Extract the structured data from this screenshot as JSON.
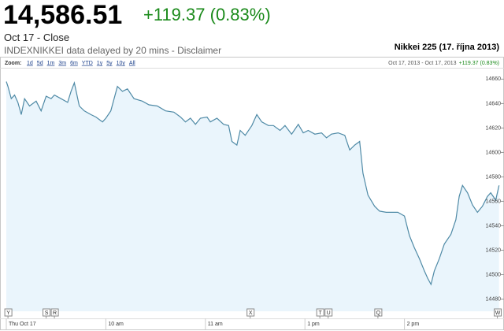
{
  "header": {
    "price": "14,586.51",
    "change": "+119.37 (0.83%)",
    "date": "Oct 17 - Close",
    "source": "INDEXNIKKEI data delayed by 20 mins - Disclaimer"
  },
  "chart_data": {
    "type": "line",
    "title": "Nikkei 225 (17. října 2013)",
    "zoom_label": "Zoom:",
    "zoom_options": [
      "1d",
      "5d",
      "1m",
      "3m",
      "6m",
      "YTD",
      "1y",
      "5y",
      "10y",
      "All"
    ],
    "range": "Oct 17, 2013 - Oct 17, 2013",
    "range_change": "+119.37 (0.83%)",
    "x": [
      0,
      1,
      3,
      5,
      7,
      9,
      11,
      14,
      18,
      21,
      24,
      27,
      29,
      33,
      37,
      39,
      41,
      44,
      47,
      51,
      54,
      58,
      60,
      63,
      65,
      67,
      70,
      73,
      77,
      82,
      86,
      91,
      96,
      101,
      105,
      108,
      111,
      114,
      117,
      121,
      123,
      127,
      131,
      134,
      136,
      139,
      141,
      144,
      148,
      151,
      154,
      158,
      161,
      165,
      168,
      172,
      176,
      179,
      182,
      186,
      190,
      193,
      196,
      200,
      204,
      207,
      210,
      213,
      215,
      218,
      222,
      225,
      229,
      233,
      236,
      240,
      243,
      246,
      249,
      252,
      254,
      256,
      258,
      261,
      264,
      268,
      271,
      273,
      275,
      278,
      281,
      284,
      287,
      290,
      292,
      295,
      297
    ],
    "values": [
      14658,
      14654,
      14644,
      14647,
      14641,
      14631,
      14644,
      14638,
      14642,
      14634,
      14646,
      14644,
      14647,
      14644,
      14641,
      14650,
      14657,
      14638,
      14634,
      14631,
      14629,
      14625,
      14628,
      14634,
      14644,
      14654,
      14650,
      14652,
      14644,
      14642,
      14639,
      14638,
      14634,
      14633,
      14629,
      14625,
      14628,
      14623,
      14628,
      14629,
      14625,
      14628,
      14623,
      14622,
      14609,
      14606,
      14618,
      14614,
      14622,
      14631,
      14625,
      14622,
      14622,
      14618,
      14622,
      14615,
      14623,
      14616,
      14618,
      14615,
      14616,
      14612,
      14615,
      14616,
      14614,
      14602,
      14606,
      14609,
      14583,
      14565,
      14556,
      14552,
      14551,
      14551,
      14551,
      14548,
      14532,
      14522,
      14513,
      14503,
      14497,
      14492,
      14503,
      14513,
      14525,
      14533,
      14545,
      14564,
      14573,
      14567,
      14557,
      14551,
      14556,
      14564,
      14567,
      14561,
      14573
    ],
    "color": "#4f8aa6",
    "fill": "#eaf5fc",
    "xlim": [
      0,
      300
    ],
    "ylim": [
      14470,
      14668
    ],
    "yticks": [
      14480,
      14500,
      14520,
      14540,
      14560,
      14580,
      14600,
      14620,
      14640,
      14660
    ],
    "xticks": [
      {
        "value": 0,
        "label": "Thu Oct 17"
      },
      {
        "value": 60,
        "label": "10 am"
      },
      {
        "value": 120,
        "label": "11 am"
      },
      {
        "value": 180,
        "label": "1 pm"
      },
      {
        "value": 240,
        "label": "2 pm"
      }
    ],
    "events": [
      {
        "x": 1,
        "label": "Y"
      },
      {
        "x": 24,
        "label": "S"
      },
      {
        "x": 29,
        "label": "R"
      },
      {
        "x": 147,
        "label": "X"
      },
      {
        "x": 189,
        "label": "T"
      },
      {
        "x": 194,
        "label": "U"
      },
      {
        "x": 224,
        "label": "Q"
      },
      {
        "x": 296,
        "label": "W"
      }
    ]
  }
}
